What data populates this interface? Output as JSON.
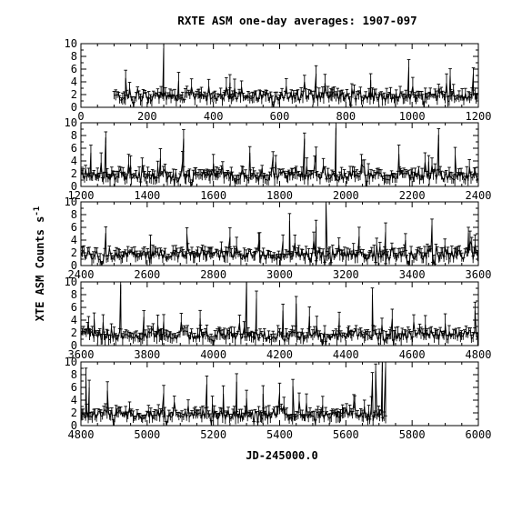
{
  "chart_data": {
    "type": "line",
    "title": "RXTE ASM one-day averages: 1907-097",
    "xlabel": "JD-245000.0",
    "ylabel": "XTE ASM Counts s",
    "ylabel_sup": "-1",
    "style": {
      "line_color": "#000000",
      "background": "#ffffff",
      "grid": false,
      "error_bars": true
    },
    "panels": [
      {
        "xlim": [
          0,
          1200
        ],
        "ylim": [
          0,
          10
        ],
        "xticks": [
          0,
          200,
          400,
          600,
          800,
          1000,
          1200
        ],
        "yticks": [
          0,
          2,
          4,
          6,
          8,
          10
        ],
        "data_range": [
          100,
          1200
        ],
        "spikes": [
          [
            250,
            9.3
          ],
          [
            990,
            6.3
          ],
          [
            710,
            5.3
          ],
          [
            1185,
            5.3
          ],
          [
            1115,
            5.0
          ],
          [
            135,
            4.6
          ],
          [
            295,
            4.2
          ],
          [
            450,
            3.9
          ],
          [
            875,
            4.3
          ]
        ]
      },
      {
        "xlim": [
          1200,
          2400
        ],
        "ylim": [
          0,
          10
        ],
        "xticks": [
          1200,
          1400,
          1600,
          1800,
          2000,
          2200,
          2400
        ],
        "yticks": [
          0,
          2,
          4,
          6,
          8,
          10
        ],
        "data_range": [
          1200,
          2400
        ],
        "spikes": [
          [
            1970,
            9.2
          ],
          [
            2280,
            8.1
          ],
          [
            1275,
            7.7
          ],
          [
            1510,
            7.5
          ],
          [
            1875,
            7.5
          ],
          [
            2250,
            3.9
          ],
          [
            1230,
            5.3
          ],
          [
            1710,
            5.3
          ],
          [
            1910,
            5.0
          ],
          [
            2160,
            5.1
          ],
          [
            1780,
            4.6
          ],
          [
            1350,
            3.3
          ],
          [
            1440,
            4.4
          ],
          [
            1600,
            3.6
          ],
          [
            2330,
            4.9
          ]
        ]
      },
      {
        "xlim": [
          2400,
          3600
        ],
        "ylim": [
          0,
          10
        ],
        "xticks": [
          2400,
          2600,
          2800,
          3000,
          3200,
          3400,
          3600
        ],
        "yticks": [
          0,
          2,
          4,
          6,
          8,
          10
        ],
        "data_range": [
          2400,
          3600
        ],
        "spikes": [
          [
            3140,
            9.7
          ],
          [
            3030,
            7.0
          ],
          [
            3110,
            6.1
          ],
          [
            3460,
            6.4
          ],
          [
            2475,
            5.1
          ],
          [
            3320,
            5.3
          ],
          [
            2720,
            5.0
          ],
          [
            2940,
            3.9
          ],
          [
            3240,
            4.6
          ],
          [
            3570,
            5.1
          ],
          [
            2610,
            3.8
          ],
          [
            2850,
            4.5
          ],
          [
            3010,
            3.8
          ],
          [
            3380,
            4.0
          ]
        ]
      },
      {
        "xlim": [
          3600,
          4800
        ],
        "ylim": [
          0,
          10
        ],
        "xticks": [
          3600,
          3800,
          4000,
          4200,
          4400,
          4600,
          4800
        ],
        "yticks": [
          0,
          2,
          4,
          6,
          8,
          10
        ],
        "data_range": [
          3600,
          4800
        ],
        "spikes": [
          [
            4100,
            9.8
          ],
          [
            3720,
            9.6
          ],
          [
            4480,
            8.0
          ],
          [
            4130,
            7.4
          ],
          [
            4250,
            6.6
          ],
          [
            4210,
            5.5
          ],
          [
            3640,
            4.2
          ],
          [
            3790,
            4.5
          ],
          [
            3850,
            3.8
          ],
          [
            3960,
            4.3
          ],
          [
            4290,
            4.6
          ],
          [
            4380,
            4.3
          ],
          [
            4540,
            4.2
          ],
          [
            4640,
            3.3
          ],
          [
            4700,
            3.5
          ],
          [
            4790,
            5.5
          ]
        ]
      },
      {
        "xlim": [
          4800,
          6000
        ],
        "ylim": [
          0,
          10
        ],
        "xticks": [
          4800,
          5000,
          5200,
          5400,
          5600,
          5800,
          6000
        ],
        "yticks": [
          0,
          2,
          4,
          6,
          8,
          10
        ],
        "data_range": [
          4800,
          5720
        ],
        "spikes": [
          [
            5710,
            9.9
          ],
          [
            5690,
            8.6
          ],
          [
            5720,
            9.2
          ],
          [
            5680,
            7.2
          ],
          [
            5270,
            6.9
          ],
          [
            5180,
            6.5
          ],
          [
            5440,
            6.2
          ],
          [
            4825,
            6.0
          ],
          [
            4880,
            5.5
          ],
          [
            4815,
            7.6
          ],
          [
            5230,
            5.0
          ],
          [
            5350,
            5.0
          ],
          [
            5400,
            5.2
          ],
          [
            5050,
            5.1
          ],
          [
            5530,
            3.2
          ],
          [
            5300,
            4.3
          ],
          [
            5590,
            2.8
          ]
        ]
      }
    ]
  }
}
